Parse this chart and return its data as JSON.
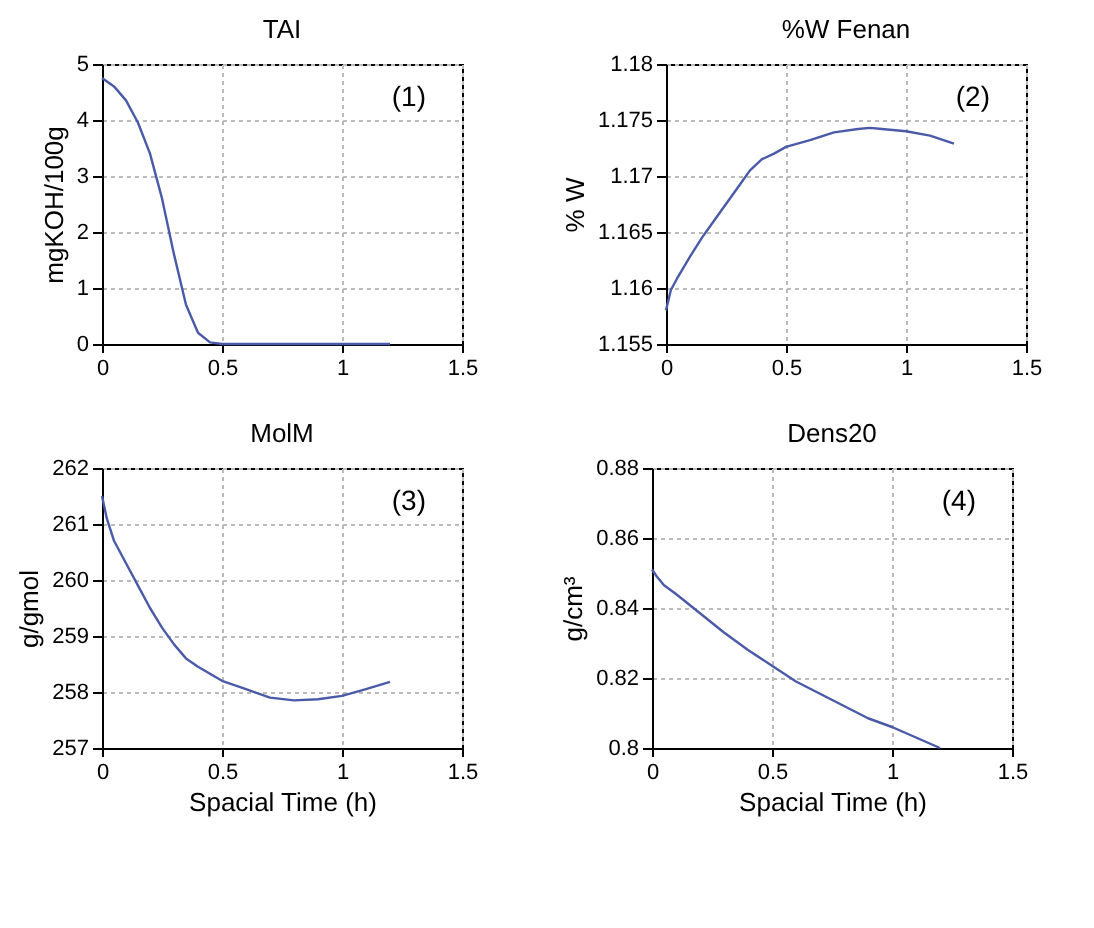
{
  "chart_data": [
    {
      "type": "line",
      "title": "TAI",
      "ylabel": "mgKOH/100g",
      "annotations": [
        "(1)"
      ],
      "xlim": [
        0,
        1.5
      ],
      "xticks": [
        0,
        0.5,
        1,
        1.5
      ],
      "ylim": [
        0,
        5
      ],
      "yticks": [
        0,
        1,
        2,
        3,
        4,
        5
      ],
      "grid": true,
      "series": [
        {
          "color": "#4a5aa8",
          "x": [
            0,
            0.05,
            0.1,
            0.15,
            0.2,
            0.25,
            0.3,
            0.35,
            0.4,
            0.45,
            0.5,
            0.6,
            0.8,
            1.0,
            1.2
          ],
          "values": [
            4.75,
            4.6,
            4.35,
            3.95,
            3.4,
            2.6,
            1.6,
            0.7,
            0.2,
            0.03,
            0,
            0,
            0,
            0,
            0
          ]
        }
      ]
    },
    {
      "type": "line",
      "title": "%W Fenan",
      "ylabel": "% W",
      "annotations": [
        "(2)"
      ],
      "xlim": [
        0,
        1.5
      ],
      "xticks": [
        0,
        0.5,
        1,
        1.5
      ],
      "ylim": [
        1.155,
        1.18
      ],
      "yticks": [
        1.155,
        1.16,
        1.165,
        1.17,
        1.175,
        1.18
      ],
      "grid": true,
      "series": [
        {
          "color": "#4a5aa8",
          "x": [
            0,
            0.02,
            0.05,
            0.1,
            0.15,
            0.2,
            0.25,
            0.3,
            0.35,
            0.4,
            0.45,
            0.5,
            0.6,
            0.7,
            0.8,
            0.85,
            0.9,
            1.0,
            1.1,
            1.2
          ],
          "values": [
            1.158,
            1.1598,
            1.161,
            1.1628,
            1.1645,
            1.166,
            1.1675,
            1.169,
            1.1705,
            1.1715,
            1.172,
            1.1726,
            1.1732,
            1.1739,
            1.1742,
            1.1743,
            1.1742,
            1.174,
            1.1736,
            1.1729
          ]
        }
      ]
    },
    {
      "type": "line",
      "title": "MolM",
      "xlabel": "Spacial Time (h)",
      "ylabel": "g/gmol",
      "annotations": [
        "(3)"
      ],
      "xlim": [
        0,
        1.5
      ],
      "xticks": [
        0,
        0.5,
        1,
        1.5
      ],
      "ylim": [
        257,
        262
      ],
      "yticks": [
        257,
        258,
        259,
        260,
        261,
        262
      ],
      "grid": true,
      "series": [
        {
          "color": "#4a5aa8",
          "x": [
            0,
            0.02,
            0.05,
            0.1,
            0.15,
            0.2,
            0.25,
            0.3,
            0.35,
            0.4,
            0.5,
            0.6,
            0.7,
            0.8,
            0.9,
            1.0,
            1.1,
            1.2
          ],
          "values": [
            261.5,
            261.1,
            260.7,
            260.3,
            259.9,
            259.5,
            259.15,
            258.85,
            258.6,
            258.45,
            258.2,
            258.05,
            257.9,
            257.85,
            257.87,
            257.93,
            258.05,
            258.18
          ]
        }
      ]
    },
    {
      "type": "line",
      "title": "Dens20",
      "xlabel": "Spacial Time (h)",
      "ylabel": "g/cm³",
      "annotations": [
        "(4)"
      ],
      "xlim": [
        0,
        1.5
      ],
      "xticks": [
        0,
        0.5,
        1,
        1.5
      ],
      "ylim": [
        0.8,
        0.88
      ],
      "yticks": [
        0.8,
        0.82,
        0.84,
        0.86,
        0.88
      ],
      "grid": true,
      "series": [
        {
          "color": "#4a5aa8",
          "x": [
            0,
            0.02,
            0.05,
            0.1,
            0.2,
            0.3,
            0.4,
            0.5,
            0.6,
            0.7,
            0.8,
            0.9,
            1.0,
            1.1,
            1.2
          ],
          "values": [
            0.851,
            0.849,
            0.8465,
            0.844,
            0.8385,
            0.833,
            0.828,
            0.8235,
            0.819,
            0.8155,
            0.812,
            0.8085,
            0.806,
            0.803,
            0.8
          ]
        }
      ]
    }
  ]
}
